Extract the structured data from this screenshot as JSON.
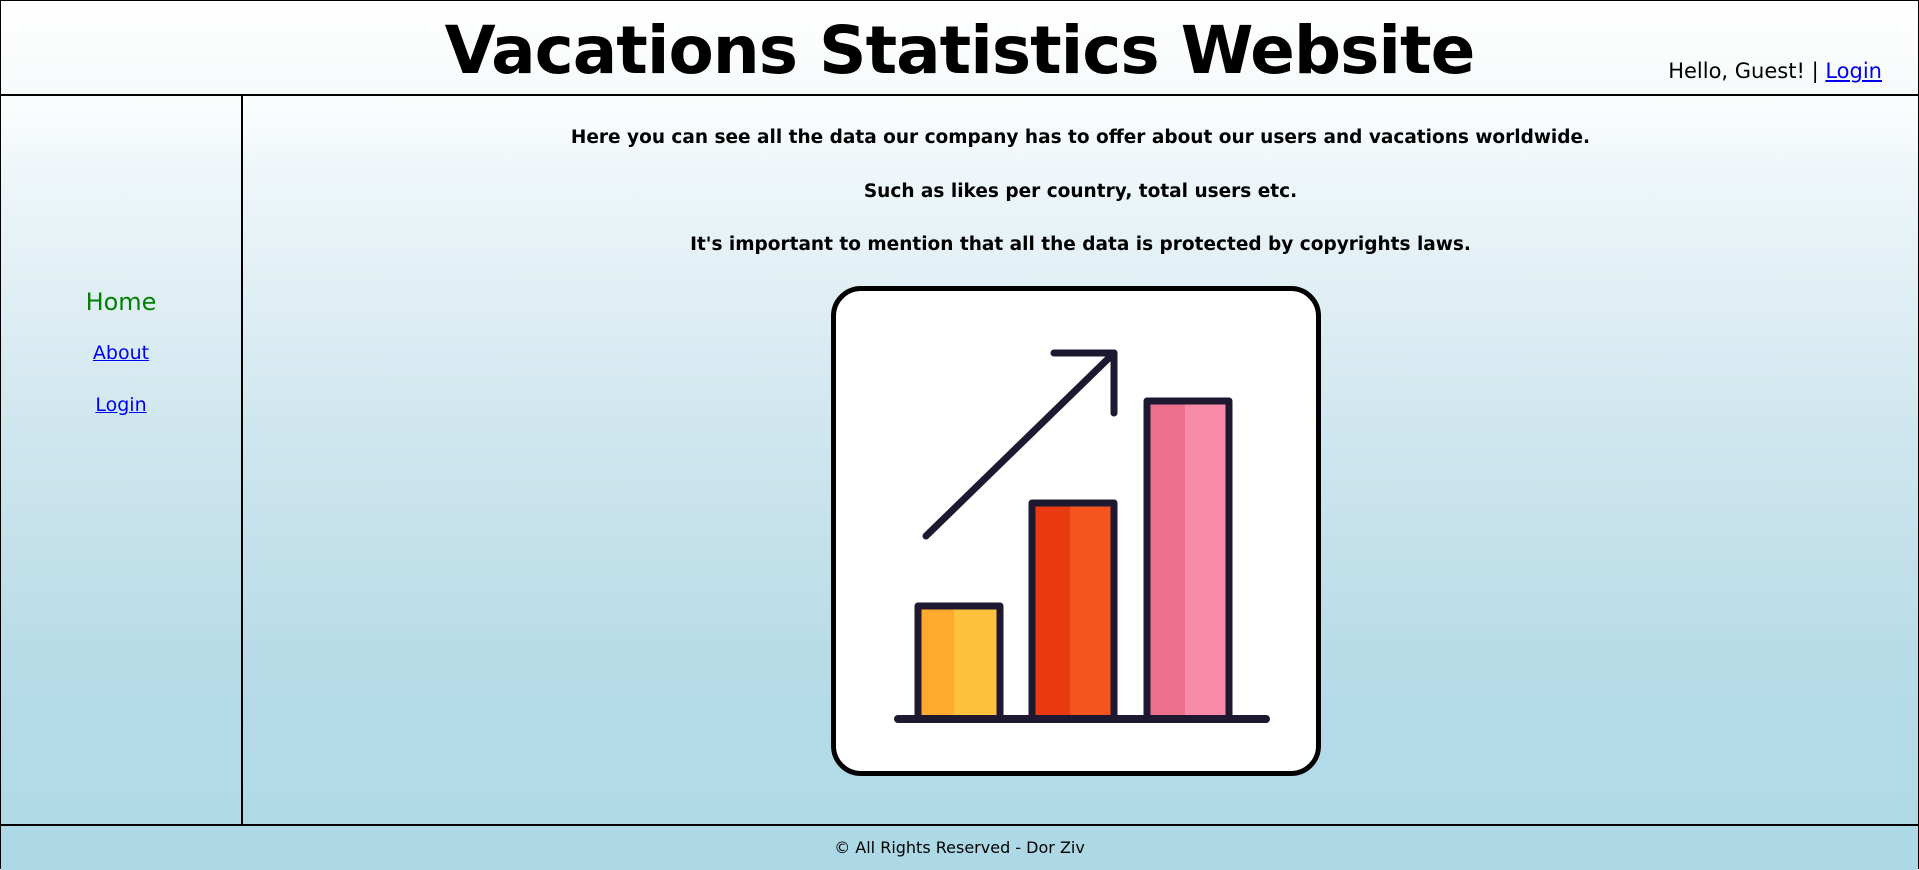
{
  "header": {
    "title": "Vacations Statistics Website",
    "greeting": "Hello, Guest!",
    "separator": "|",
    "login_link": "Login"
  },
  "sidebar": {
    "items": [
      {
        "label": "Home",
        "active": true
      },
      {
        "label": "About",
        "active": false
      },
      {
        "label": "Login",
        "active": false
      }
    ]
  },
  "main": {
    "paragraphs": [
      "Here you can see all the data our company has to offer about our users and vacations worldwide.",
      "Such as likes per country, total users etc.",
      "It's important to mention that all the data is protected by copyrights laws."
    ],
    "hero_icon": "bar-chart-growth-icon"
  },
  "footer": {
    "text": "© All Rights Reserved - Dor Ziv"
  },
  "colors": {
    "home_active": "#008000",
    "link": "#0000ee",
    "footer_bg": "#add8e6",
    "bar_yellow": "#ffc23d",
    "bar_orange": "#f0471a",
    "bar_pink": "#f48aa6",
    "icon_stroke": "#1e1830"
  }
}
